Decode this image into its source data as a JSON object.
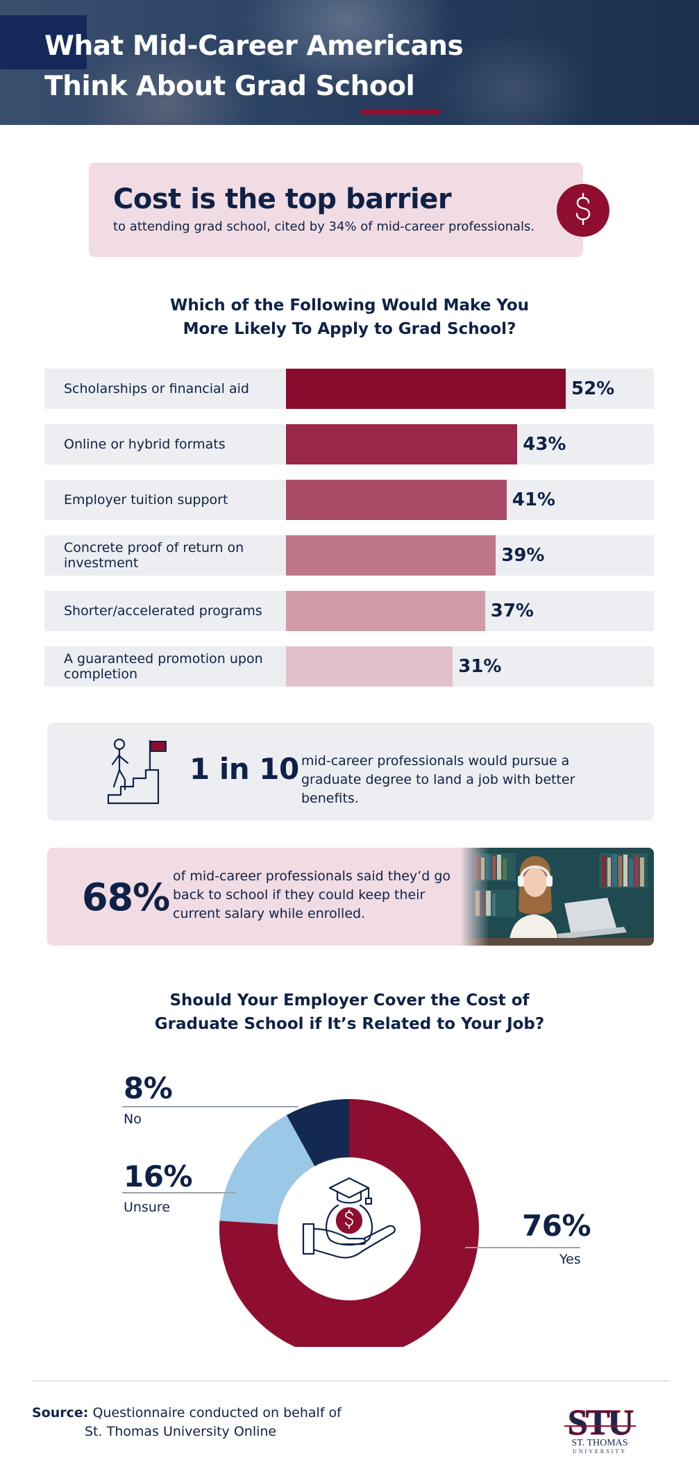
{
  "header": {
    "title_line1": "What Mid-Career Americans",
    "title_line2": "Think About Grad School"
  },
  "callout_cost": {
    "headline": "Cost is the top barrier",
    "detail": "to attending grad school, cited by 34% of mid-career professionals.",
    "icon": "dollar-sign-icon"
  },
  "bar_section": {
    "title_line1": "Which of the Following Would Make You",
    "title_line2": "More Likely To Apply to Grad School?"
  },
  "stat_one_in_ten": {
    "value": "1 in 10",
    "text": "mid-career professionals would pursue a graduate degree to land a job with better benefits.",
    "icon": "person-climbing-stairs-flag-icon"
  },
  "stat_salary": {
    "value": "68%",
    "text": "of mid-career professionals said they’d go back to school if they could keep their current salary while enrolled."
  },
  "donut_section": {
    "title_line1": "Should Your Employer Cover the Cost of",
    "title_line2": "Graduate School if It’s Related to Your Job?"
  },
  "footer": {
    "source_label": "Source:",
    "source_line1": "Questionnaire conducted on behalf of",
    "source_line2": "St. Thomas University Online",
    "logo_mark": "STU",
    "logo_name": "ST. THOMAS",
    "logo_sub": "UNIVERSITY"
  },
  "colors": {
    "navy": "#0f2147",
    "maroon": "#8f0e2f",
    "light_blue": "#9cc8e8",
    "pink_bg": "#f0dce2",
    "gray_bg": "#eceef1"
  },
  "chart_data": [
    {
      "type": "bar",
      "orientation": "horizontal",
      "categories": [
        "Scholarships or financial aid",
        "Online or hybrid formats",
        "Employer tuition support",
        "Concrete proof of return on investment",
        "Shorter/accelerated programs",
        "A guaranteed promotion upon completion"
      ],
      "values": [
        52,
        43,
        41,
        39,
        37,
        31
      ],
      "value_labels": [
        "52%",
        "43%",
        "41%",
        "39%",
        "37%",
        "31%"
      ],
      "bar_colors": [
        "#8a0a2c",
        "#9a2649",
        "#a94a66",
        "#bf7589",
        "#d19ba9",
        "#e3c1ca"
      ],
      "title": "",
      "xlabel": "",
      "ylabel": "",
      "xlim": [
        0,
        100
      ]
    },
    {
      "type": "pie",
      "style": "donut",
      "categories": [
        "Yes",
        "Unsure",
        "No"
      ],
      "values": [
        76,
        16,
        8
      ],
      "value_labels": [
        "76%",
        "16%",
        "8%"
      ],
      "colors": [
        "#8f0e2f",
        "#9cc8e8",
        "#13294f"
      ],
      "center_icon": "hand-holding-money-bag-graduation-cap-icon",
      "title": ""
    }
  ]
}
